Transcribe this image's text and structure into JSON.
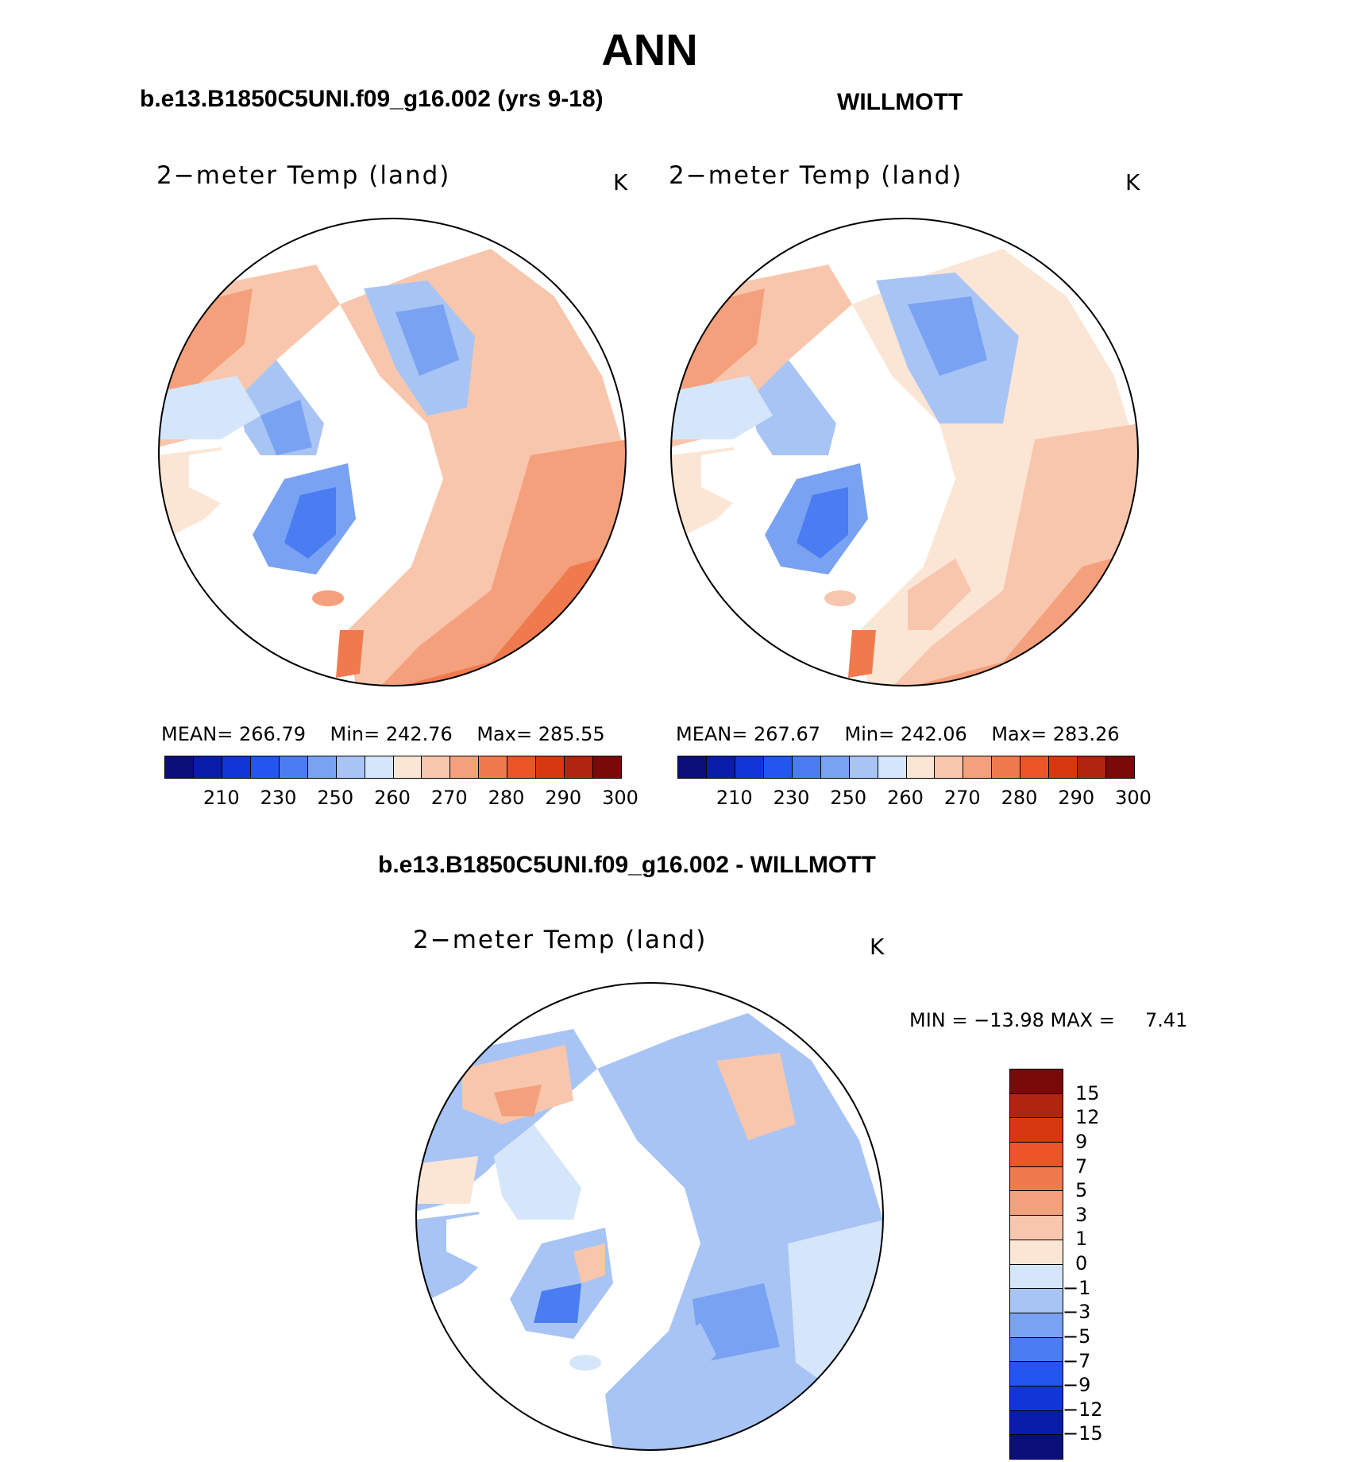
{
  "title": "ANN",
  "panels": {
    "model": {
      "case_title": "b.e13.B1850C5UNI.f09_g16.002 (yrs 9-18)",
      "variable_label": "2−meter Temp (land)",
      "units": "K",
      "stats": {
        "mean_label": "MEAN=",
        "mean": "266.79",
        "min_label": "Min=",
        "min": "242.76",
        "max_label": "Max=",
        "max": "285.55"
      }
    },
    "obs": {
      "case_title": "WILLMOTT",
      "variable_label": "2−meter Temp (land)",
      "units": "K",
      "stats": {
        "mean_label": "MEAN=",
        "mean": "267.67",
        "min_label": "Min=",
        "min": "242.06",
        "max_label": "Max=",
        "max": "283.26"
      }
    },
    "diff": {
      "case_title": "b.e13.B1850C5UNI.f09_g16.002 - WILLMOTT",
      "variable_label": "2−meter Temp (land)",
      "units": "K",
      "stats_text": "MIN = −13.98 MAX =",
      "stats_max": "7.41"
    }
  },
  "colorbar_abs": {
    "ticks": [
      "210",
      "230",
      "250",
      "260",
      "270",
      "280",
      "290",
      "300"
    ],
    "colors": [
      "#0a0f7a",
      "#0a1da8",
      "#1135d6",
      "#2355f0",
      "#4a7df2",
      "#7aa2f2",
      "#a8c4f4",
      "#d6e6fa",
      "#fbe6d6",
      "#f8c6ac",
      "#f4a07c",
      "#f07a4e",
      "#ec5528",
      "#d83810",
      "#b02410",
      "#7a0a0a"
    ]
  },
  "colorbar_diff": {
    "ticks": [
      "15",
      "12",
      "9",
      "7",
      "5",
      "3",
      "1",
      "0",
      "−1",
      "−3",
      "−5",
      "−7",
      "−9",
      "−12",
      "−15"
    ],
    "colors": [
      "#7a0a0a",
      "#b02410",
      "#d83810",
      "#ec5528",
      "#f07a4e",
      "#f4a07c",
      "#f8c6ac",
      "#fbe6d6",
      "#d6e6fa",
      "#a8c4f4",
      "#7aa2f2",
      "#4a7df2",
      "#2355f0",
      "#1135d6",
      "#0a1da8",
      "#0a0f7a"
    ]
  }
}
